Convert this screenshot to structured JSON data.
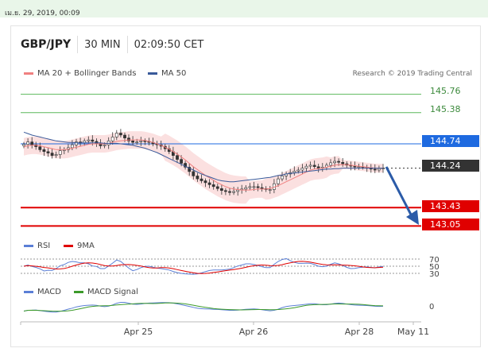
{
  "datebar": {
    "text": "เม.ย. 29, 2019, 00:09"
  },
  "header": {
    "pair": "GBP/JPY",
    "timeframe": "30 MIN",
    "time": "02:09:50 CET"
  },
  "legend": {
    "ma20": {
      "label": "MA 20 + Bollinger Bands",
      "color": "#f08080"
    },
    "ma50": {
      "label": "MA 50",
      "color": "#3a5a9a"
    }
  },
  "credit": "Research © 2019 Trading Central",
  "rsi_legend": {
    "rsi": "RSI",
    "ma9": "9MA"
  },
  "macd_legend": {
    "macd": "MACD",
    "signal": "MACD Signal"
  },
  "colors": {
    "green_line": "#5cb85c",
    "red_line": "#e00000",
    "blue_badge": "#1e6ae0",
    "dark_badge": "#333333",
    "arrow": "#2b5ba8"
  },
  "chart_data": {
    "type": "candlestick",
    "price_levels": [
      {
        "value": "145.76",
        "kind": "resistance-green"
      },
      {
        "value": "145.38",
        "kind": "resistance-green"
      },
      {
        "value": "144.74",
        "kind": "pivot-blue"
      },
      {
        "value": "144.24",
        "kind": "current-price"
      },
      {
        "value": "143.43",
        "kind": "support-red"
      },
      {
        "value": "143.05",
        "kind": "support-red"
      }
    ],
    "x_ticks": [
      "Apr 25",
      "Apr 26",
      "Apr 28",
      "May 11"
    ],
    "rsi_ticks": [
      "70",
      "50",
      "30"
    ],
    "macd_ticks": [
      "0"
    ],
    "close": [
      144.73,
      144.78,
      144.72,
      144.68,
      144.62,
      144.58,
      144.55,
      144.5,
      144.52,
      144.6,
      144.62,
      144.66,
      144.72,
      144.78,
      144.76,
      144.8,
      144.82,
      144.79,
      144.75,
      144.7,
      144.72,
      144.8,
      144.88,
      144.96,
      144.92,
      144.86,
      144.8,
      144.77,
      144.78,
      144.8,
      144.79,
      144.77,
      144.74,
      144.72,
      144.69,
      144.64,
      144.58,
      144.5,
      144.42,
      144.34,
      144.26,
      144.17,
      144.08,
      144.02,
      143.98,
      143.94,
      143.9,
      143.86,
      143.82,
      143.78,
      143.76,
      143.74,
      143.76,
      143.79,
      143.81,
      143.84,
      143.86,
      143.86,
      143.84,
      143.82,
      143.8,
      143.8,
      143.92,
      144.02,
      144.08,
      144.12,
      144.15,
      144.18,
      144.2,
      144.24,
      144.28,
      144.3,
      144.27,
      144.24,
      144.26,
      144.3,
      144.35,
      144.38,
      144.36,
      144.33,
      144.3,
      144.28,
      144.27,
      144.27,
      144.26,
      144.25,
      144.22,
      144.2,
      144.23,
      144.24
    ],
    "ma20": [
      144.68,
      144.7,
      144.71,
      144.71,
      144.7,
      144.68,
      144.66,
      144.64,
      144.62,
      144.62,
      144.62,
      144.63,
      144.65,
      144.67,
      144.69,
      144.71,
      144.73,
      144.74,
      144.74,
      144.74,
      144.74,
      144.75,
      144.77,
      144.79,
      144.8,
      144.81,
      144.82,
      144.82,
      144.82,
      144.82,
      144.81,
      144.79,
      144.77,
      144.74,
      144.71,
      144.67,
      144.63,
      144.58,
      144.53,
      144.47,
      144.41,
      144.34,
      144.27,
      144.21,
      144.15,
      144.09,
      144.04,
      143.99,
      143.94,
      143.9,
      143.86,
      143.83,
      143.81,
      143.8,
      143.79,
      143.79,
      143.79,
      143.8,
      143.81,
      143.81,
      143.81,
      143.82,
      143.85,
      143.88,
      143.92,
      143.96,
      144.0,
      144.04,
      144.08,
      144.12,
      144.16,
      144.2,
      144.22,
      144.23,
      144.24,
      144.26,
      144.28,
      144.3,
      144.31,
      144.31,
      144.31,
      144.3,
      144.29,
      144.28,
      144.27,
      144.26,
      144.25,
      144.24,
      144.24,
      144.24
    ],
    "ma50": [
      144.98,
      144.95,
      144.92,
      144.9,
      144.88,
      144.86,
      144.84,
      144.82,
      144.8,
      144.79,
      144.78,
      144.77,
      144.77,
      144.76,
      144.76,
      144.76,
      144.76,
      144.76,
      144.76,
      144.76,
      144.75,
      144.75,
      144.75,
      144.75,
      144.74,
      144.73,
      144.72,
      144.71,
      144.69,
      144.67,
      144.65,
      144.62,
      144.59,
      144.56,
      144.52,
      144.48,
      144.44,
      144.4,
      144.36,
      144.32,
      144.28,
      144.24,
      144.2,
      144.16,
      144.12,
      144.09,
      144.06,
      144.03,
      144.0,
      143.98,
      143.97,
      143.96,
      143.96,
      143.97,
      143.98,
      143.99,
      144.0,
      144.01,
      144.02,
      144.03,
      144.04,
      144.05,
      144.07,
      144.09,
      144.1,
      144.12,
      144.13,
      144.14,
      144.15,
      144.16,
      144.17,
      144.18,
      144.19,
      144.2,
      144.21,
      144.22,
      144.22,
      144.23,
      144.23,
      144.24,
      144.24,
      144.24,
      144.24,
      144.24,
      144.24,
      144.24,
      144.24,
      144.24,
      144.24,
      144.24
    ]
  }
}
